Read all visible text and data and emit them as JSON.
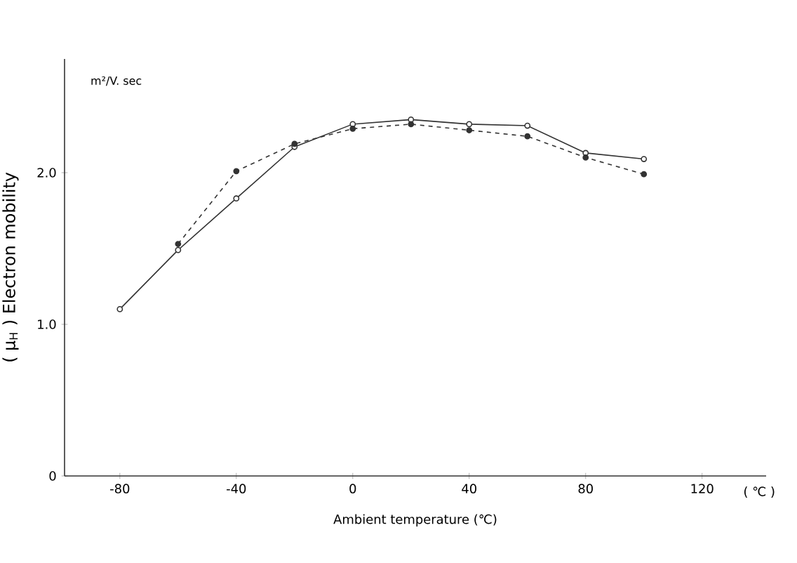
{
  "chart_data": {
    "type": "line",
    "xlabel": "Ambient temperature  (℃)",
    "ylabel": "( μ$_{H}$ ) Electron mobility",
    "annotations": [
      "m²/V. sec",
      "( ℃ )"
    ],
    "x": [
      -80,
      -60,
      -40,
      -20,
      0,
      20,
      40,
      60,
      80,
      100
    ],
    "series": [
      {
        "color": "#333333",
        "line_style": "solid",
        "marker": "circle",
        "values": [
          1.1,
          1.49,
          1.83,
          2.17,
          2.32,
          2.35,
          2.32,
          2.31,
          2.13,
          2.09
        ]
      },
      {
        "color": "#333333",
        "line_style": "dashed",
        "marker": "circle",
        "x": [
          -60,
          -40,
          -20,
          0,
          20,
          40,
          60,
          80,
          100
        ],
        "values": [
          1.53,
          2.01,
          2.19,
          2.29,
          2.32,
          2.28,
          2.24,
          2.1,
          1.99
        ]
      }
    ],
    "xlim": [
      -99,
      142
    ],
    "ylim": [
      0,
      2.75
    ],
    "xticks": [
      -80,
      -40,
      0,
      40,
      80,
      120
    ],
    "yticks": [
      0,
      {
        "value": 1,
        "label": "1.0"
      },
      {
        "value": 2,
        "label": "2.0"
      }
    ],
    "grid": false
  }
}
